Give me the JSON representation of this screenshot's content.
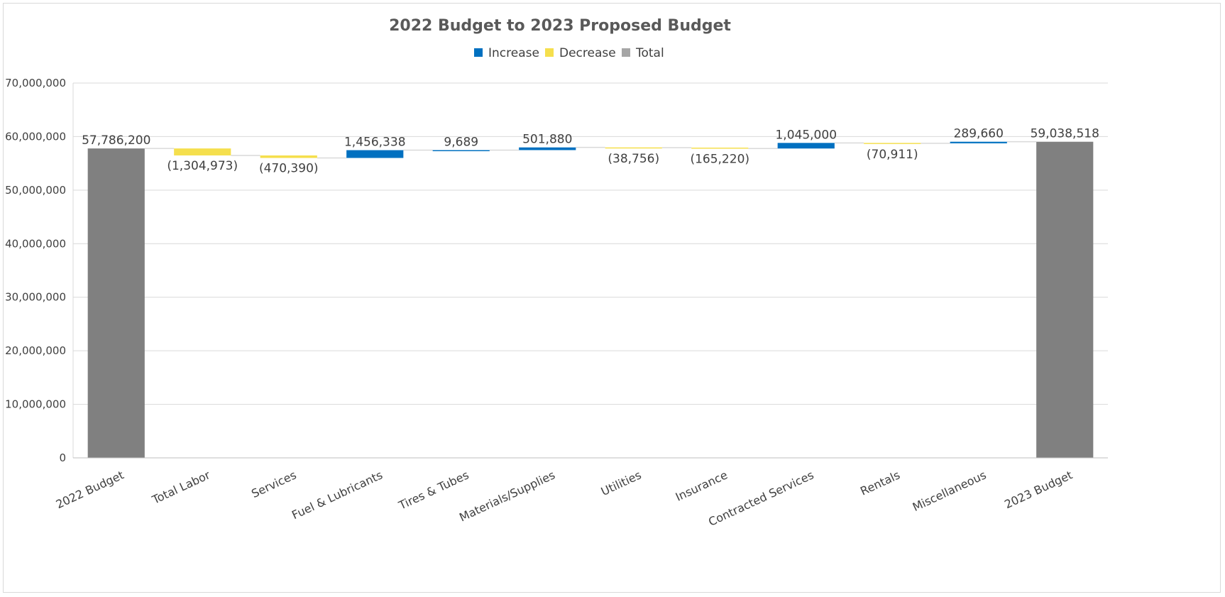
{
  "chart_data": {
    "type": "bar",
    "subtype": "waterfall",
    "title": "2022 Budget to 2023 Proposed Budget",
    "xlabel": "",
    "ylabel": "",
    "ylim": [
      0,
      70000000
    ],
    "yticks": [
      0,
      10000000,
      20000000,
      30000000,
      40000000,
      50000000,
      60000000,
      70000000
    ],
    "ytick_labels": [
      "0",
      "10,000,000",
      "20,000,000",
      "30,000,000",
      "40,000,000",
      "50,000,000",
      "60,000,000",
      "70,000,000"
    ],
    "grid": true,
    "legend_position": "top-center",
    "legend": [
      {
        "name": "Increase",
        "color": "#0070c0"
      },
      {
        "name": "Decrease",
        "color": "#f5df4d"
      },
      {
        "name": "Total",
        "color": "#a6a6a6"
      }
    ],
    "colors": {
      "increase": "#0070c0",
      "decrease": "#f5df4d",
      "total": "#808080",
      "connector": "#d9d9d9",
      "grid": "#d9d9d9"
    },
    "categories": [
      "2022 Budget",
      "Total Labor",
      "Services",
      "Fuel & Lubricants",
      "Tires & Tubes",
      "Materials/Supplies",
      "Utilities",
      "Insurance",
      "Contracted Services",
      "Rentals",
      "Miscellaneous",
      "2023 Budget"
    ],
    "values": [
      57786200,
      -1304973,
      -470390,
      1456338,
      9689,
      501880,
      -38756,
      -165220,
      1045000,
      -70911,
      289660,
      59038518
    ],
    "kinds": [
      "total",
      "decrease",
      "decrease",
      "increase",
      "increase",
      "increase",
      "decrease",
      "decrease",
      "increase",
      "decrease",
      "increase",
      "total"
    ],
    "data_labels": [
      "57,786,200",
      "(1,304,973)",
      "(470,390)",
      "1,456,338",
      "9,689",
      "501,880",
      "(38,756)",
      "(165,220)",
      "1,045,000",
      "(70,911)",
      "289,660",
      "59,038,518"
    ]
  }
}
